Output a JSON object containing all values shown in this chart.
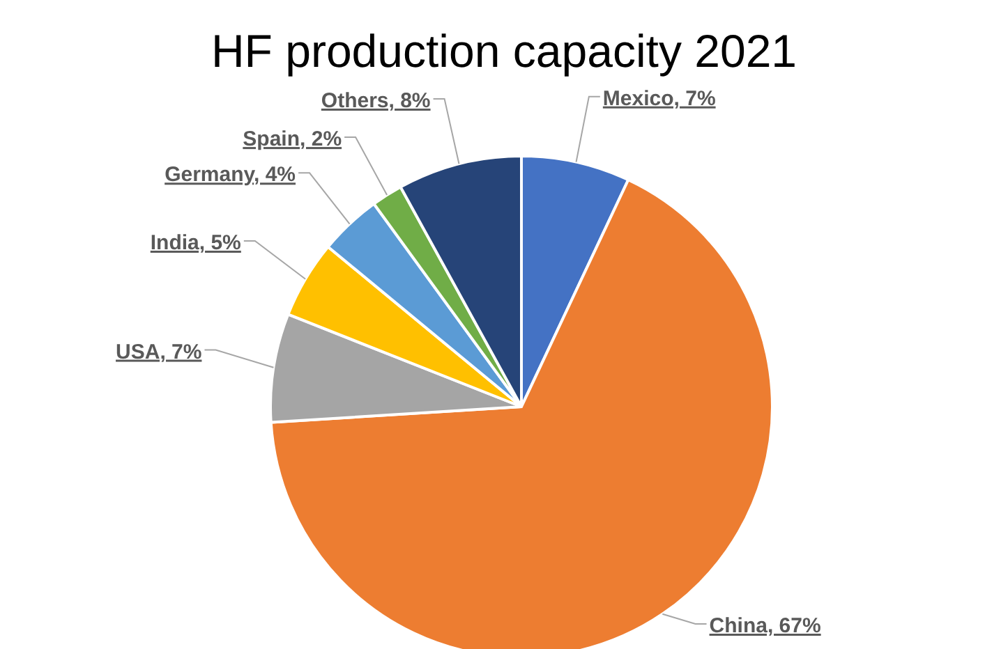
{
  "chart_data": {
    "type": "pie",
    "title": "HF production capacity 2021",
    "categories": [
      "Mexico",
      "China",
      "USA",
      "India",
      "Germany",
      "Spain",
      "Others"
    ],
    "values": [
      7,
      67,
      7,
      5,
      4,
      2,
      8
    ],
    "value_labels": [
      "7%",
      "67%",
      "7%",
      "5%",
      "4%",
      "2%",
      "8%"
    ],
    "colors": [
      "#4472c4",
      "#ed7d31",
      "#a5a5a5",
      "#ffc000",
      "#5b9bd5",
      "#70ad47",
      "#264478"
    ]
  }
}
